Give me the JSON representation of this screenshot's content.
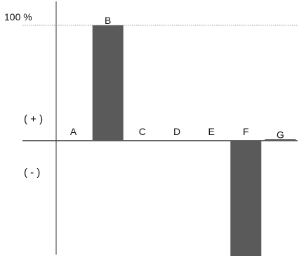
{
  "chart_data": {
    "type": "bar",
    "title": "",
    "xlabel": "",
    "ylabel": "",
    "ylim": [
      -100,
      100
    ],
    "y_tick_label": "100 %",
    "positive_label": "( + )",
    "negative_label": "( - )",
    "categories": [
      "A",
      "B",
      "C",
      "D",
      "E",
      "F",
      "G"
    ],
    "values": [
      0,
      100,
      0,
      0,
      0,
      -100,
      1
    ],
    "bar_color": "#5a5a5a",
    "axis_color": "#333333",
    "grid_color": "#999999",
    "grid": false
  }
}
